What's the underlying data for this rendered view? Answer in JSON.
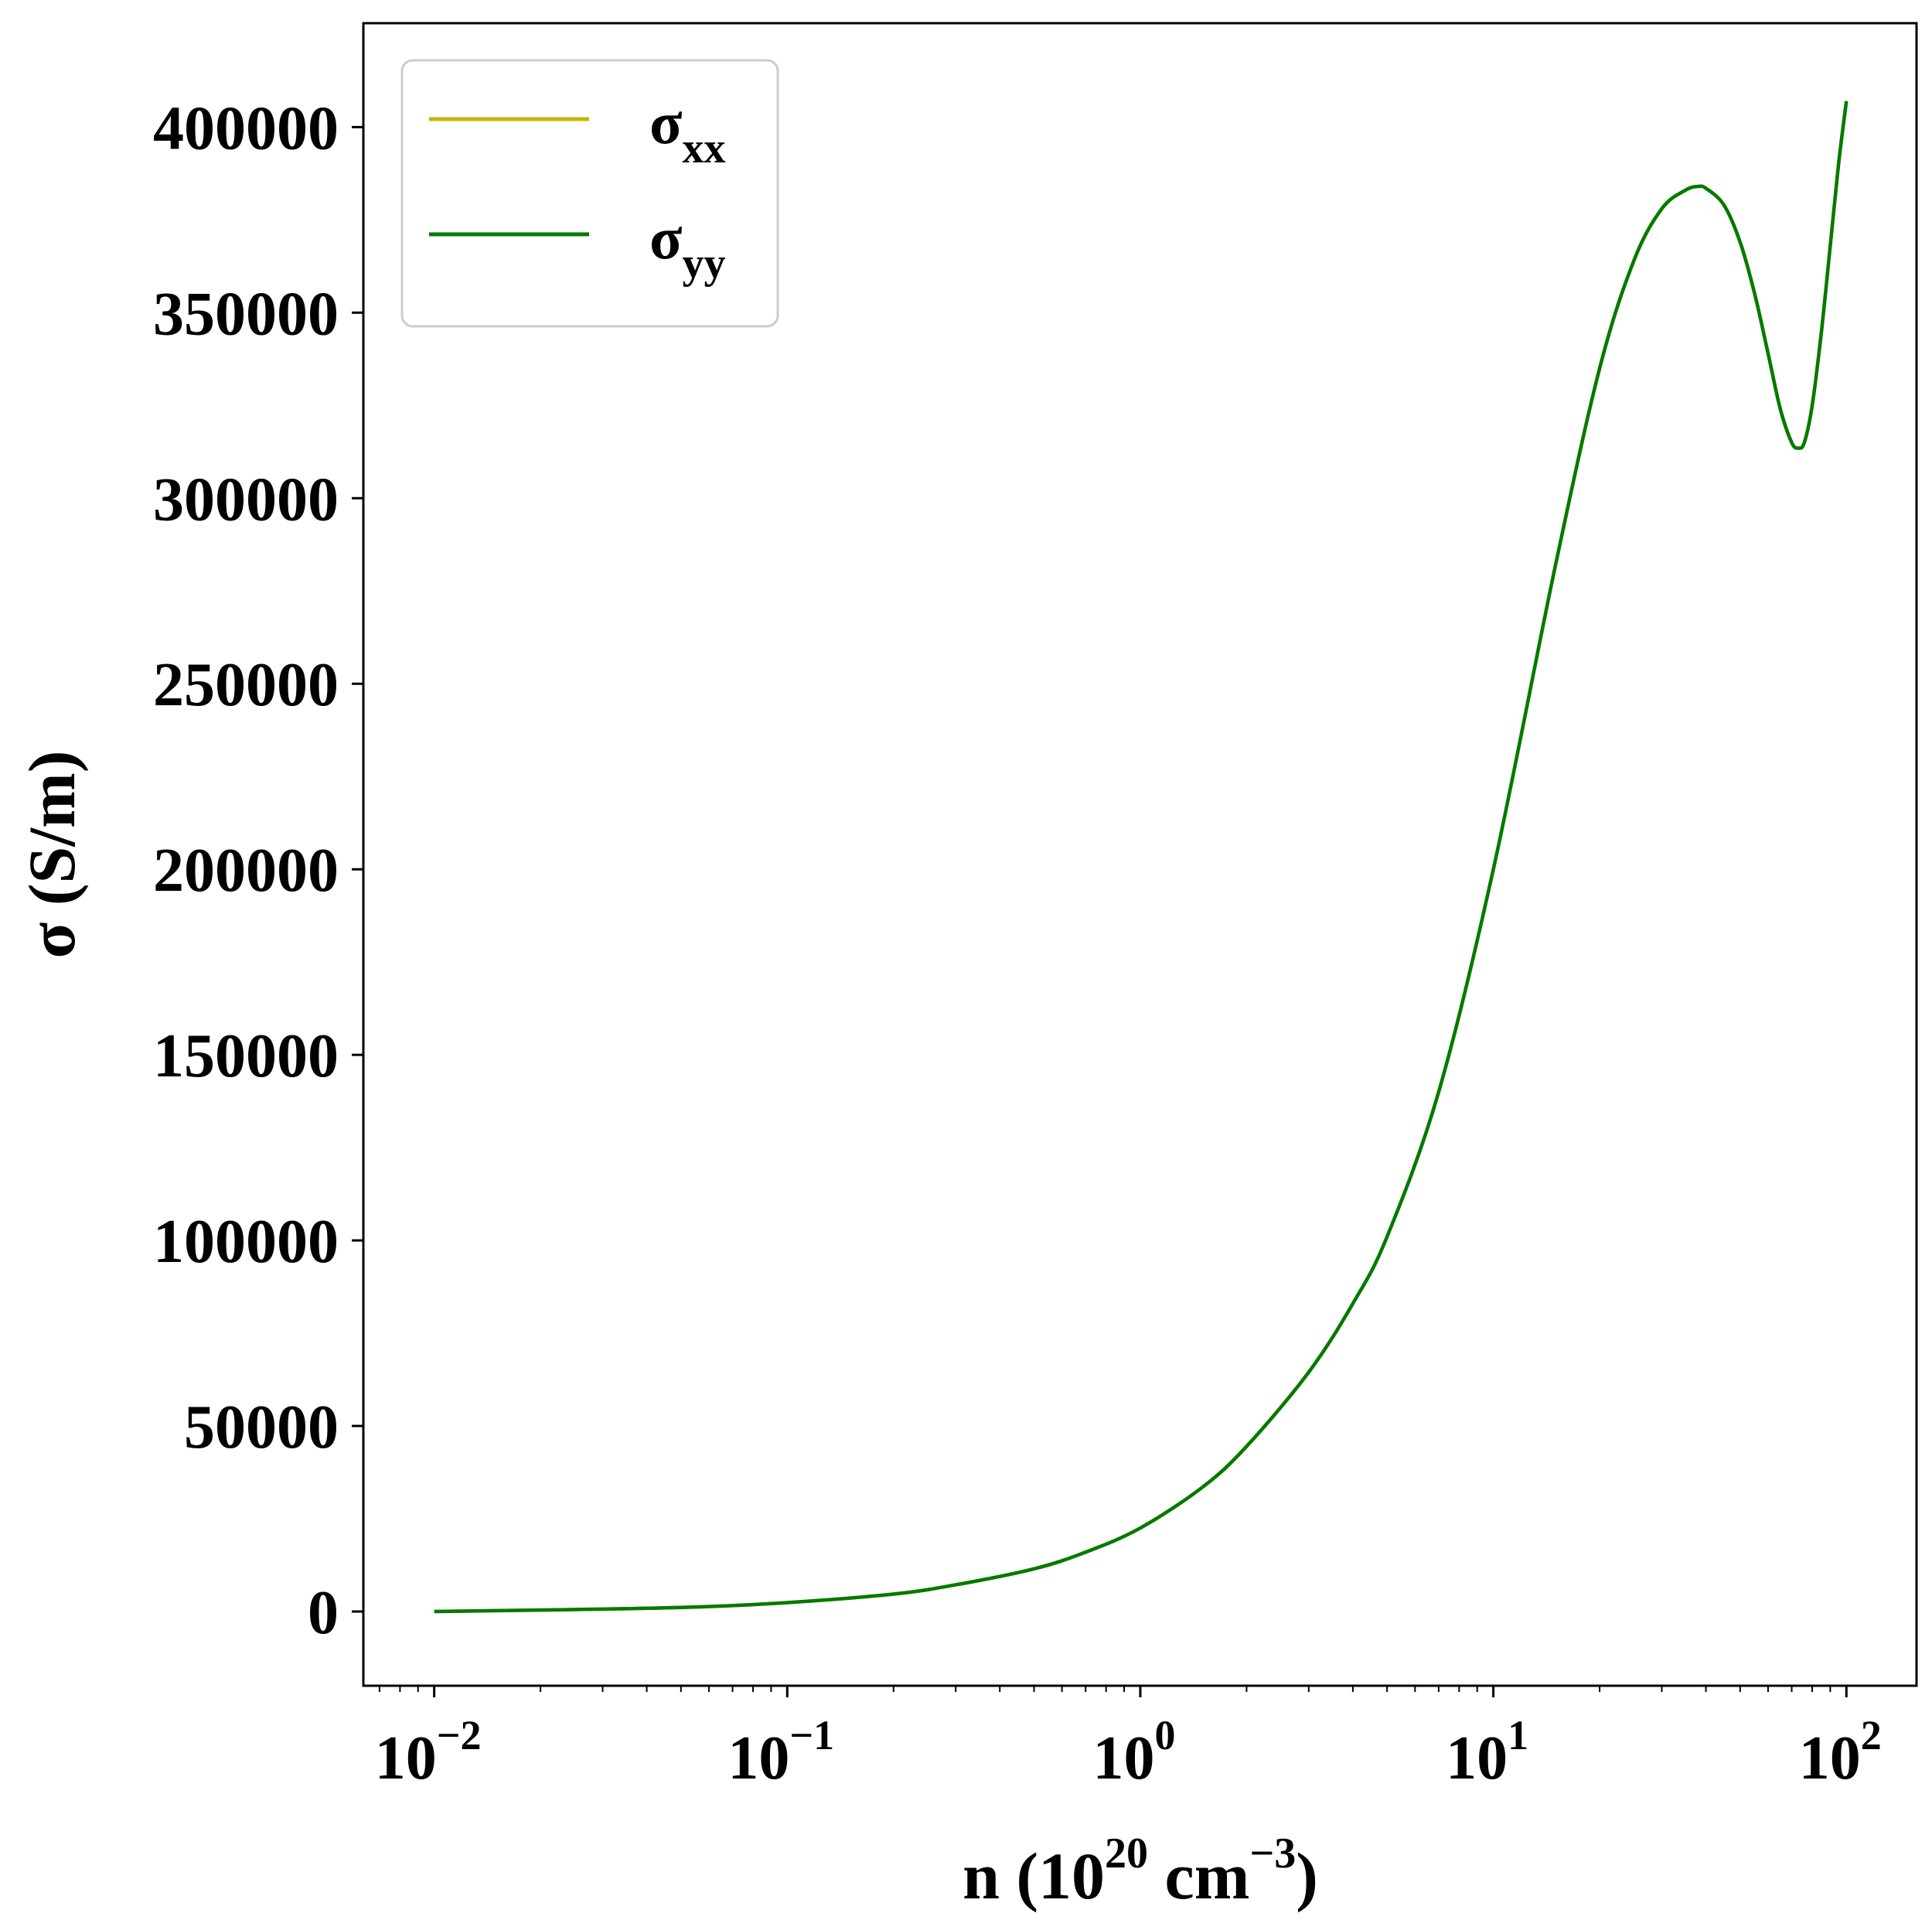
{
  "chart_data": {
    "type": "line",
    "title": "",
    "xlabel": {
      "base": "n (10",
      "exp1": "20",
      "mid": " cm",
      "exp2": "−3",
      "tail": ")"
    },
    "ylabel": "σ (S/m)",
    "xscale": "log",
    "xlim": [
      0.0063,
      158
    ],
    "ylim": [
      -20000,
      428000
    ],
    "xticks": [
      {
        "value": 0.01,
        "base": "10",
        "exp": "−2"
      },
      {
        "value": 0.1,
        "base": "10",
        "exp": "−1"
      },
      {
        "value": 1,
        "base": "10",
        "exp": "0"
      },
      {
        "value": 10,
        "base": "10",
        "exp": "1"
      },
      {
        "value": 100,
        "base": "10",
        "exp": "2"
      }
    ],
    "yticks": [
      {
        "value": 0,
        "label": "0"
      },
      {
        "value": 50000,
        "label": "50000"
      },
      {
        "value": 100000,
        "label": "100000"
      },
      {
        "value": 150000,
        "label": "150000"
      },
      {
        "value": 200000,
        "label": "200000"
      },
      {
        "value": 250000,
        "label": "250000"
      },
      {
        "value": 300000,
        "label": "300000"
      },
      {
        "value": 350000,
        "label": "350000"
      },
      {
        "value": 400000,
        "label": "400000"
      }
    ],
    "grid": false,
    "legend": {
      "position": "top-left",
      "entries": [
        {
          "symbol": "σ",
          "sub": "xx",
          "color": "#c8b400"
        },
        {
          "symbol": "σ",
          "sub": "yy",
          "color": "#007a00"
        }
      ]
    },
    "series": [
      {
        "name": "σxx",
        "color": "#c8b400",
        "x": [
          0.01,
          0.02,
          0.05,
          0.1,
          0.2,
          0.3,
          0.5,
          0.7,
          1,
          1.5,
          2,
          3,
          4,
          5,
          7,
          10,
          15,
          20,
          25,
          30,
          35,
          38,
          40,
          45,
          50,
          55,
          60,
          65,
          70,
          73,
          76,
          80,
          85,
          90,
          95,
          100
        ],
        "y": [
          0,
          400,
          1100,
          2400,
          4700,
          7200,
          11500,
          16000,
          22500,
          33500,
          44500,
          64500,
          83000,
          101000,
          140000,
          200000,
          282000,
          335000,
          364000,
          378000,
          383000,
          384000,
          383500,
          379000,
          369000,
          355000,
          339000,
          324000,
          315000,
          313500,
          315000,
          325000,
          345000,
          368000,
          390000,
          407000
        ]
      },
      {
        "name": "σyy",
        "color": "#007a00",
        "x": [
          0.01,
          0.02,
          0.05,
          0.1,
          0.2,
          0.3,
          0.5,
          0.7,
          1,
          1.5,
          2,
          3,
          4,
          5,
          7,
          10,
          15,
          20,
          25,
          30,
          35,
          38,
          40,
          45,
          50,
          55,
          60,
          65,
          70,
          73,
          76,
          80,
          85,
          90,
          95,
          100
        ],
        "y": [
          0,
          400,
          1100,
          2400,
          4700,
          7200,
          11500,
          16000,
          22500,
          33500,
          44500,
          64500,
          83000,
          101000,
          140000,
          200000,
          282000,
          335000,
          364000,
          378000,
          383000,
          384000,
          383500,
          379000,
          369000,
          355000,
          339000,
          324000,
          315000,
          313500,
          315000,
          325000,
          345000,
          368000,
          390000,
          407000
        ]
      }
    ]
  }
}
